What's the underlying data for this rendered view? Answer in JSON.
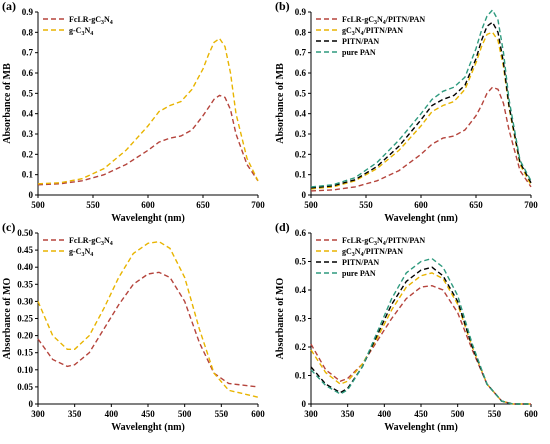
{
  "chart_data": [
    {
      "type": "line",
      "panel_label": "(a)",
      "xlabel": "Wavelenght (nm)",
      "ylabel": "Absorbance of MB",
      "xlim": [
        500,
        700
      ],
      "ylim": [
        0,
        0.9
      ],
      "xticks": [
        500,
        550,
        600,
        650,
        700
      ],
      "yticks": [
        0,
        0.1,
        0.2,
        0.3,
        0.4,
        0.5,
        0.6,
        0.7,
        0.8,
        0.9
      ],
      "grid": false,
      "legend_position": "top-left",
      "x": [
        500,
        520,
        540,
        560,
        580,
        600,
        610,
        620,
        630,
        640,
        650,
        655,
        660,
        665,
        670,
        675,
        680,
        690,
        700
      ],
      "series": [
        {
          "name": "FcLR-gC3N4",
          "legend": [
            "FcLR-gC",
            "3",
            "N",
            "4"
          ],
          "color": "#b5443c",
          "values": [
            0.05,
            0.055,
            0.07,
            0.1,
            0.15,
            0.22,
            0.26,
            0.28,
            0.29,
            0.32,
            0.39,
            0.43,
            0.47,
            0.49,
            0.48,
            0.42,
            0.3,
            0.15,
            0.07
          ]
        },
        {
          "name": "g-C3N4",
          "legend": [
            "g-C",
            "3",
            "N",
            "4"
          ],
          "color": "#e8b400",
          "values": [
            0.055,
            0.06,
            0.08,
            0.13,
            0.22,
            0.34,
            0.41,
            0.44,
            0.46,
            0.52,
            0.62,
            0.69,
            0.75,
            0.77,
            0.73,
            0.6,
            0.4,
            0.18,
            0.07
          ]
        }
      ]
    },
    {
      "type": "line",
      "panel_label": "(b)",
      "xlabel": "Wavelenght (nm)",
      "ylabel": "Absorbance of MB",
      "xlim": [
        500,
        700
      ],
      "ylim": [
        0,
        0.9
      ],
      "xticks": [
        500,
        550,
        600,
        650,
        700
      ],
      "yticks": [
        0,
        0.1,
        0.2,
        0.3,
        0.4,
        0.5,
        0.6,
        0.7,
        0.8,
        0.9
      ],
      "grid": false,
      "legend_position": "top-left",
      "x": [
        500,
        520,
        540,
        560,
        580,
        600,
        610,
        620,
        630,
        640,
        650,
        655,
        660,
        665,
        670,
        675,
        680,
        690,
        700
      ],
      "series": [
        {
          "name": "FcLR-gC3N4/PITN/PAN",
          "legend": [
            "FcLR-gC",
            "3",
            "N",
            "4",
            "/PITN/PAN"
          ],
          "color": "#b5443c",
          "values": [
            0.02,
            0.025,
            0.04,
            0.07,
            0.12,
            0.2,
            0.25,
            0.28,
            0.29,
            0.32,
            0.39,
            0.44,
            0.5,
            0.53,
            0.52,
            0.45,
            0.32,
            0.12,
            0.04
          ]
        },
        {
          "name": "gC3N4/PITN/PAN",
          "legend": [
            "gC",
            "3",
            "N",
            "4",
            "/PITN/PAN"
          ],
          "color": "#e8b400",
          "values": [
            0.03,
            0.04,
            0.07,
            0.13,
            0.22,
            0.34,
            0.41,
            0.44,
            0.46,
            0.52,
            0.65,
            0.73,
            0.79,
            0.8,
            0.76,
            0.63,
            0.43,
            0.15,
            0.05
          ]
        },
        {
          "name": "PITN/PAN",
          "legend": [
            "PITN/PAN"
          ],
          "color": "#000000",
          "values": [
            0.035,
            0.045,
            0.075,
            0.14,
            0.24,
            0.37,
            0.44,
            0.47,
            0.49,
            0.54,
            0.67,
            0.76,
            0.83,
            0.85,
            0.8,
            0.65,
            0.44,
            0.16,
            0.06
          ]
        },
        {
          "name": "pure PAN",
          "legend": [
            "pure PAN"
          ],
          "color": "#2e9a7e",
          "values": [
            0.04,
            0.05,
            0.085,
            0.16,
            0.27,
            0.4,
            0.47,
            0.51,
            0.53,
            0.58,
            0.72,
            0.81,
            0.88,
            0.91,
            0.86,
            0.7,
            0.47,
            0.17,
            0.07
          ]
        }
      ]
    },
    {
      "type": "line",
      "panel_label": "(c)",
      "xlabel": "Wavelenght (nm)",
      "ylabel": "Absorbance of MO",
      "xlim": [
        300,
        600
      ],
      "ylim": [
        0,
        0.5
      ],
      "xticks": [
        300,
        350,
        400,
        450,
        500,
        550,
        600
      ],
      "yticks": [
        0,
        0.05,
        0.1,
        0.15,
        0.2,
        0.25,
        0.3,
        0.35,
        0.4,
        0.45,
        0.5
      ],
      "grid": false,
      "legend_position": "top-left",
      "x": [
        300,
        320,
        340,
        350,
        370,
        390,
        410,
        430,
        450,
        465,
        480,
        500,
        520,
        540,
        560,
        580,
        600
      ],
      "series": [
        {
          "name": "FcLR-gC3N4",
          "legend": [
            "FcLR-gC",
            "3",
            "N",
            "4"
          ],
          "color": "#b5443c",
          "values": [
            0.19,
            0.13,
            0.11,
            0.115,
            0.15,
            0.22,
            0.29,
            0.35,
            0.38,
            0.385,
            0.37,
            0.3,
            0.18,
            0.09,
            0.06,
            0.055,
            0.05
          ]
        },
        {
          "name": "g-C3N4",
          "legend": [
            "g-C",
            "3",
            "N",
            "4"
          ],
          "color": "#e8b400",
          "values": [
            0.3,
            0.2,
            0.16,
            0.16,
            0.2,
            0.28,
            0.37,
            0.44,
            0.47,
            0.475,
            0.455,
            0.37,
            0.22,
            0.09,
            0.04,
            0.03,
            0.02
          ]
        }
      ]
    },
    {
      "type": "line",
      "panel_label": "(d)",
      "xlabel": "Wavelenght (nm)",
      "ylabel": "Absorbance of MO",
      "xlim": [
        300,
        600
      ],
      "ylim": [
        0,
        0.6
      ],
      "xticks": [
        300,
        350,
        400,
        450,
        500,
        550,
        600
      ],
      "yticks": [
        0,
        0.1,
        0.2,
        0.3,
        0.4,
        0.5,
        0.6
      ],
      "grid": false,
      "legend_position": "top-left",
      "x": [
        300,
        320,
        340,
        350,
        370,
        390,
        410,
        430,
        450,
        465,
        480,
        500,
        520,
        540,
        560,
        575,
        600
      ],
      "series": [
        {
          "name": "FcLR-gC3N4/PITN/PAN",
          "legend": [
            "FcLR-gC",
            "3",
            "N",
            "4",
            "/PITN/PAN"
          ],
          "color": "#b5443c",
          "values": [
            0.21,
            0.12,
            0.08,
            0.09,
            0.14,
            0.22,
            0.3,
            0.37,
            0.41,
            0.415,
            0.4,
            0.32,
            0.19,
            0.07,
            0.01,
            0.0,
            0.0
          ]
        },
        {
          "name": "gC3N4/PITN/PAN",
          "legend": [
            "gC",
            "3",
            "N",
            "4",
            "/PITN/PAN"
          ],
          "color": "#e8b400",
          "values": [
            0.19,
            0.11,
            0.07,
            0.08,
            0.14,
            0.23,
            0.33,
            0.41,
            0.45,
            0.46,
            0.44,
            0.35,
            0.2,
            0.07,
            0.01,
            0.0,
            0.0
          ]
        },
        {
          "name": "PITN/PAN",
          "legend": [
            "PITN/PAN"
          ],
          "color": "#000000",
          "values": [
            0.13,
            0.07,
            0.04,
            0.055,
            0.13,
            0.24,
            0.35,
            0.43,
            0.47,
            0.48,
            0.45,
            0.36,
            0.2,
            0.07,
            0.01,
            0.0,
            0.0
          ]
        },
        {
          "name": "pure PAN",
          "legend": [
            "pure PAN"
          ],
          "color": "#2e9a7e",
          "values": [
            0.12,
            0.065,
            0.035,
            0.05,
            0.13,
            0.25,
            0.37,
            0.46,
            0.5,
            0.51,
            0.48,
            0.38,
            0.21,
            0.07,
            0.01,
            0.0,
            0.0
          ]
        }
      ]
    }
  ]
}
